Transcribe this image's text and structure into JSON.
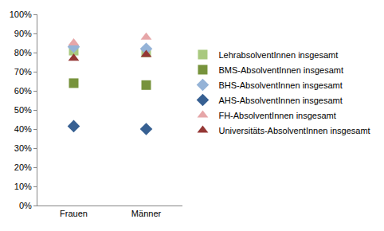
{
  "chart_data": {
    "type": "scatter",
    "categories": [
      "Frauen",
      "Männer"
    ],
    "series": [
      {
        "name": "LehrabsolventInnen insgesamt",
        "color": "#a9c97f",
        "marker": "square",
        "values": [
          81,
          80
        ]
      },
      {
        "name": "BMS-AbsolventInnen insgesamt",
        "color": "#77933c",
        "marker": "square",
        "values": [
          64,
          63
        ]
      },
      {
        "name": "BHS-AbsolventInnen insgesamt",
        "color": "#95b3d7",
        "marker": "diamond",
        "values": [
          83,
          82
        ]
      },
      {
        "name": "AHS-AbsolventInnen insgesamt",
        "color": "#376092",
        "marker": "diamond",
        "values": [
          41.5,
          40
        ]
      },
      {
        "name": "FH-AbsolventInnen insgesamt",
        "color": "#e6a6a8",
        "marker": "triangle-up",
        "values": [
          85,
          88
        ]
      },
      {
        "name": "Universitäts-AbsolventInnen insgesamt",
        "color": "#953735",
        "marker": "triangle-up",
        "values": [
          77,
          79
        ]
      }
    ],
    "ylim": [
      0,
      100
    ],
    "yticks": [
      {
        "value": 0,
        "label": "0%"
      },
      {
        "value": 10,
        "label": "10%"
      },
      {
        "value": 20,
        "label": "20%"
      },
      {
        "value": 30,
        "label": "30%"
      },
      {
        "value": 40,
        "label": "40%"
      },
      {
        "value": 50,
        "label": "50%"
      },
      {
        "value": 60,
        "label": "60%"
      },
      {
        "value": 70,
        "label": "70%"
      },
      {
        "value": 80,
        "label": "80%"
      },
      {
        "value": 90,
        "label": "90%"
      },
      {
        "value": 100,
        "label": "100%"
      }
    ],
    "grid": false,
    "legend": "right"
  }
}
